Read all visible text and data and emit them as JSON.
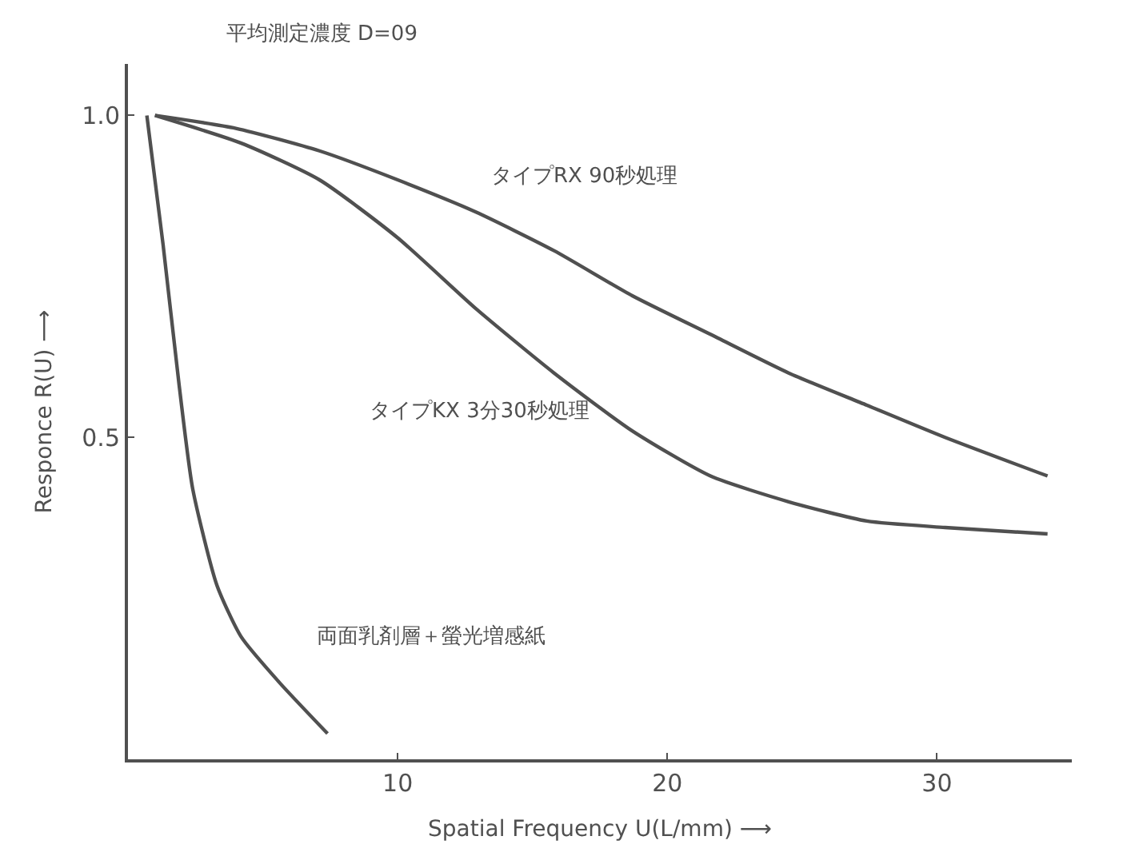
{
  "chart_data": {
    "type": "line",
    "title": "平均測定濃度 D=09",
    "xlabel": "Spatial Frequency U(L/mm) ⟶",
    "ylabel": "Responce R(U) ⟶",
    "xlim": [
      0,
      35
    ],
    "ylim": [
      0,
      1.08
    ],
    "xticks": [
      10,
      20,
      30
    ],
    "yticks": [
      {
        "value": 0.5,
        "label": "0.5"
      },
      {
        "value": 1.0,
        "label": "1.0"
      }
    ],
    "marker": "none",
    "line_style": "solid",
    "series": [
      {
        "name": "タイプRX 90秒処理",
        "color": "#505050",
        "x": [
          1,
          4,
          7.1,
          10,
          12.9,
          15.8,
          18.7,
          21.6,
          24.5,
          27.4,
          30.3,
          34.1
        ],
        "values": [
          1.0,
          0.98,
          0.945,
          0.9,
          0.85,
          0.79,
          0.72,
          0.66,
          0.6,
          0.55,
          0.5,
          0.44
        ]
      },
      {
        "name": "タイプKX 3分30秒処理",
        "color": "#505050",
        "x": [
          1,
          4.2,
          7.1,
          10,
          12.9,
          15.8,
          18.7,
          21.6,
          24.5,
          27.4,
          30.3,
          34.1
        ],
        "values": [
          1.0,
          0.957,
          0.9,
          0.81,
          0.7,
          0.6,
          0.51,
          0.44,
          0.4,
          0.37,
          0.36,
          0.35
        ]
      },
      {
        "name": "両面乳剤層＋螢光増感紙",
        "color": "#505050",
        "x": [
          0.7,
          1.3,
          1.9,
          2.4,
          3.3,
          4.2,
          5.6,
          7.4
        ],
        "values": [
          1.0,
          0.8,
          0.58,
          0.42,
          0.27,
          0.19,
          0.12,
          0.04
        ]
      }
    ]
  }
}
